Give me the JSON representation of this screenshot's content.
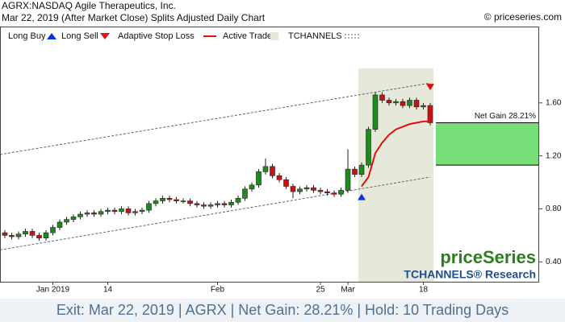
{
  "header": {
    "title": "AGRX:NASDAQ Agile Therapeutics, Inc.",
    "subtitle": "Mar 22, 2019 (After Market Close)  Splits Adjusted Daily Chart",
    "copyright": "© priceseries.com"
  },
  "legend": {
    "buy": "Long Buy",
    "sell": "Long Sell",
    "stop": "Adaptive Stop Loss",
    "active": "Active Trade",
    "channels": "TCHANNELS"
  },
  "watermark": {
    "brand": "priceSeries",
    "research": "TCHANNELS® Research"
  },
  "footer": "Exit: Mar 22, 2019 | AGRX | Net Gain: 28.21% | Hold: 10 Trading Days",
  "chart_data": {
    "type": "candlestick",
    "categories": [
      null,
      null,
      null,
      null,
      null,
      null,
      null,
      "Jan 2019",
      null,
      null,
      null,
      null,
      null,
      null,
      null,
      "14",
      null,
      null,
      null,
      null,
      null,
      null,
      null,
      null,
      null,
      null,
      null,
      null,
      null,
      null,
      null,
      "Feb",
      null,
      null,
      null,
      null,
      null,
      null,
      null,
      null,
      null,
      null,
      null,
      null,
      null,
      null,
      "25",
      null,
      null,
      null,
      "Mar",
      null,
      null,
      null,
      null,
      null,
      null,
      null,
      null,
      null,
      null,
      "18",
      null
    ],
    "open": [
      0.62,
      0.6,
      0.59,
      0.61,
      0.63,
      0.6,
      0.58,
      0.62,
      0.66,
      0.7,
      0.72,
      0.74,
      0.76,
      0.77,
      0.76,
      0.78,
      0.79,
      0.78,
      0.8,
      0.77,
      0.78,
      0.79,
      0.84,
      0.86,
      0.88,
      0.87,
      0.86,
      0.86,
      0.84,
      0.83,
      0.82,
      0.83,
      0.84,
      0.83,
      0.85,
      0.88,
      0.95,
      0.98,
      1.08,
      1.12,
      1.05,
      1.02,
      0.97,
      0.93,
      0.95,
      0.96,
      0.94,
      0.93,
      0.92,
      0.91,
      0.94,
      1.1,
      1.06,
      1.13,
      1.4,
      1.66,
      1.62,
      1.6,
      1.61,
      1.58,
      1.62,
      1.57,
      1.58
    ],
    "high": [
      0.64,
      0.62,
      0.63,
      0.65,
      0.65,
      0.62,
      0.64,
      0.68,
      0.72,
      0.74,
      0.76,
      0.78,
      0.79,
      0.79,
      0.8,
      0.81,
      0.81,
      0.82,
      0.82,
      0.8,
      0.81,
      0.86,
      0.88,
      0.9,
      0.9,
      0.89,
      0.88,
      0.88,
      0.86,
      0.85,
      0.85,
      0.86,
      0.86,
      0.87,
      0.9,
      0.97,
      1.0,
      1.1,
      1.18,
      1.14,
      1.07,
      1.04,
      0.99,
      0.97,
      0.98,
      0.98,
      0.96,
      0.95,
      0.94,
      0.96,
      1.25,
      1.12,
      1.15,
      1.42,
      1.68,
      1.68,
      1.64,
      1.63,
      1.63,
      1.64,
      1.64,
      1.6,
      1.6
    ],
    "low": [
      0.58,
      0.57,
      0.57,
      0.59,
      0.58,
      0.56,
      0.56,
      0.6,
      0.64,
      0.68,
      0.7,
      0.72,
      0.74,
      0.74,
      0.74,
      0.76,
      0.76,
      0.76,
      0.75,
      0.75,
      0.76,
      0.77,
      0.82,
      0.84,
      0.85,
      0.84,
      0.84,
      0.82,
      0.81,
      0.8,
      0.8,
      0.81,
      0.81,
      0.81,
      0.83,
      0.86,
      0.93,
      0.96,
      1.06,
      1.03,
      1.0,
      0.95,
      0.88,
      0.91,
      0.93,
      0.92,
      0.91,
      0.9,
      0.89,
      0.89,
      0.92,
      1.04,
      1.04,
      1.11,
      1.38,
      1.6,
      1.58,
      1.58,
      1.56,
      1.56,
      1.55,
      1.55,
      1.43
    ],
    "close": [
      0.6,
      0.59,
      0.61,
      0.63,
      0.6,
      0.58,
      0.62,
      0.66,
      0.7,
      0.72,
      0.74,
      0.76,
      0.77,
      0.76,
      0.78,
      0.79,
      0.78,
      0.8,
      0.77,
      0.78,
      0.79,
      0.84,
      0.86,
      0.88,
      0.87,
      0.86,
      0.86,
      0.84,
      0.83,
      0.82,
      0.83,
      0.84,
      0.83,
      0.85,
      0.88,
      0.95,
      0.98,
      1.08,
      1.12,
      1.05,
      1.02,
      0.97,
      0.93,
      0.95,
      0.96,
      0.94,
      0.93,
      0.92,
      0.91,
      0.94,
      1.1,
      1.06,
      1.13,
      1.4,
      1.66,
      1.62,
      1.6,
      1.61,
      1.58,
      1.62,
      1.57,
      1.58,
      1.45
    ],
    "stop_loss": [
      null,
      null,
      null,
      null,
      null,
      null,
      null,
      null,
      null,
      null,
      null,
      null,
      null,
      null,
      null,
      null,
      null,
      null,
      null,
      null,
      null,
      null,
      null,
      null,
      null,
      null,
      null,
      null,
      null,
      null,
      null,
      null,
      null,
      null,
      null,
      null,
      null,
      null,
      null,
      null,
      null,
      null,
      null,
      null,
      null,
      null,
      null,
      null,
      null,
      null,
      null,
      null,
      0.97,
      1.04,
      1.22,
      1.3,
      1.36,
      1.4,
      1.42,
      1.44,
      1.45,
      1.46,
      1.46
    ],
    "buy_signal": [
      null,
      null,
      null,
      null,
      null,
      null,
      null,
      null,
      null,
      null,
      null,
      null,
      null,
      null,
      null,
      null,
      null,
      null,
      null,
      null,
      null,
      null,
      null,
      null,
      null,
      null,
      null,
      null,
      null,
      null,
      null,
      null,
      null,
      null,
      null,
      null,
      null,
      null,
      null,
      null,
      null,
      null,
      null,
      null,
      null,
      null,
      null,
      null,
      null,
      null,
      null,
      null,
      0.89,
      null,
      null,
      null,
      null,
      null,
      null,
      null,
      null,
      null,
      null
    ],
    "sell_signal": [
      null,
      null,
      null,
      null,
      null,
      null,
      null,
      null,
      null,
      null,
      null,
      null,
      null,
      null,
      null,
      null,
      null,
      null,
      null,
      null,
      null,
      null,
      null,
      null,
      null,
      null,
      null,
      null,
      null,
      null,
      null,
      null,
      null,
      null,
      null,
      null,
      null,
      null,
      null,
      null,
      null,
      null,
      null,
      null,
      null,
      null,
      null,
      null,
      null,
      null,
      null,
      null,
      null,
      null,
      null,
      null,
      null,
      null,
      null,
      null,
      null,
      null,
      1.72
    ],
    "channel": {
      "lower": [
        0.49,
        1.04
      ],
      "upper": [
        1.21,
        1.75
      ]
    },
    "net_gain": {
      "label": "Net Gain 28.21%",
      "from": 1.13,
      "to": 1.45
    },
    "up_color": "#1f8a1f",
    "down_color": "#cc1111",
    "stop_color": "#e01010",
    "buy_color": "#1030e0",
    "sell_color": "#e01010",
    "active_color": "#e6e8d9",
    "gain_color": "#77dd77",
    "ylim": [
      0.25,
      2.17
    ],
    "yticks": [
      {
        "value": 0.4,
        "label": "0.40"
      },
      {
        "value": 0.8,
        "label": "0.80"
      },
      {
        "value": 1.2,
        "label": "1.20"
      },
      {
        "value": 1.6,
        "label": "1.60"
      }
    ]
  }
}
